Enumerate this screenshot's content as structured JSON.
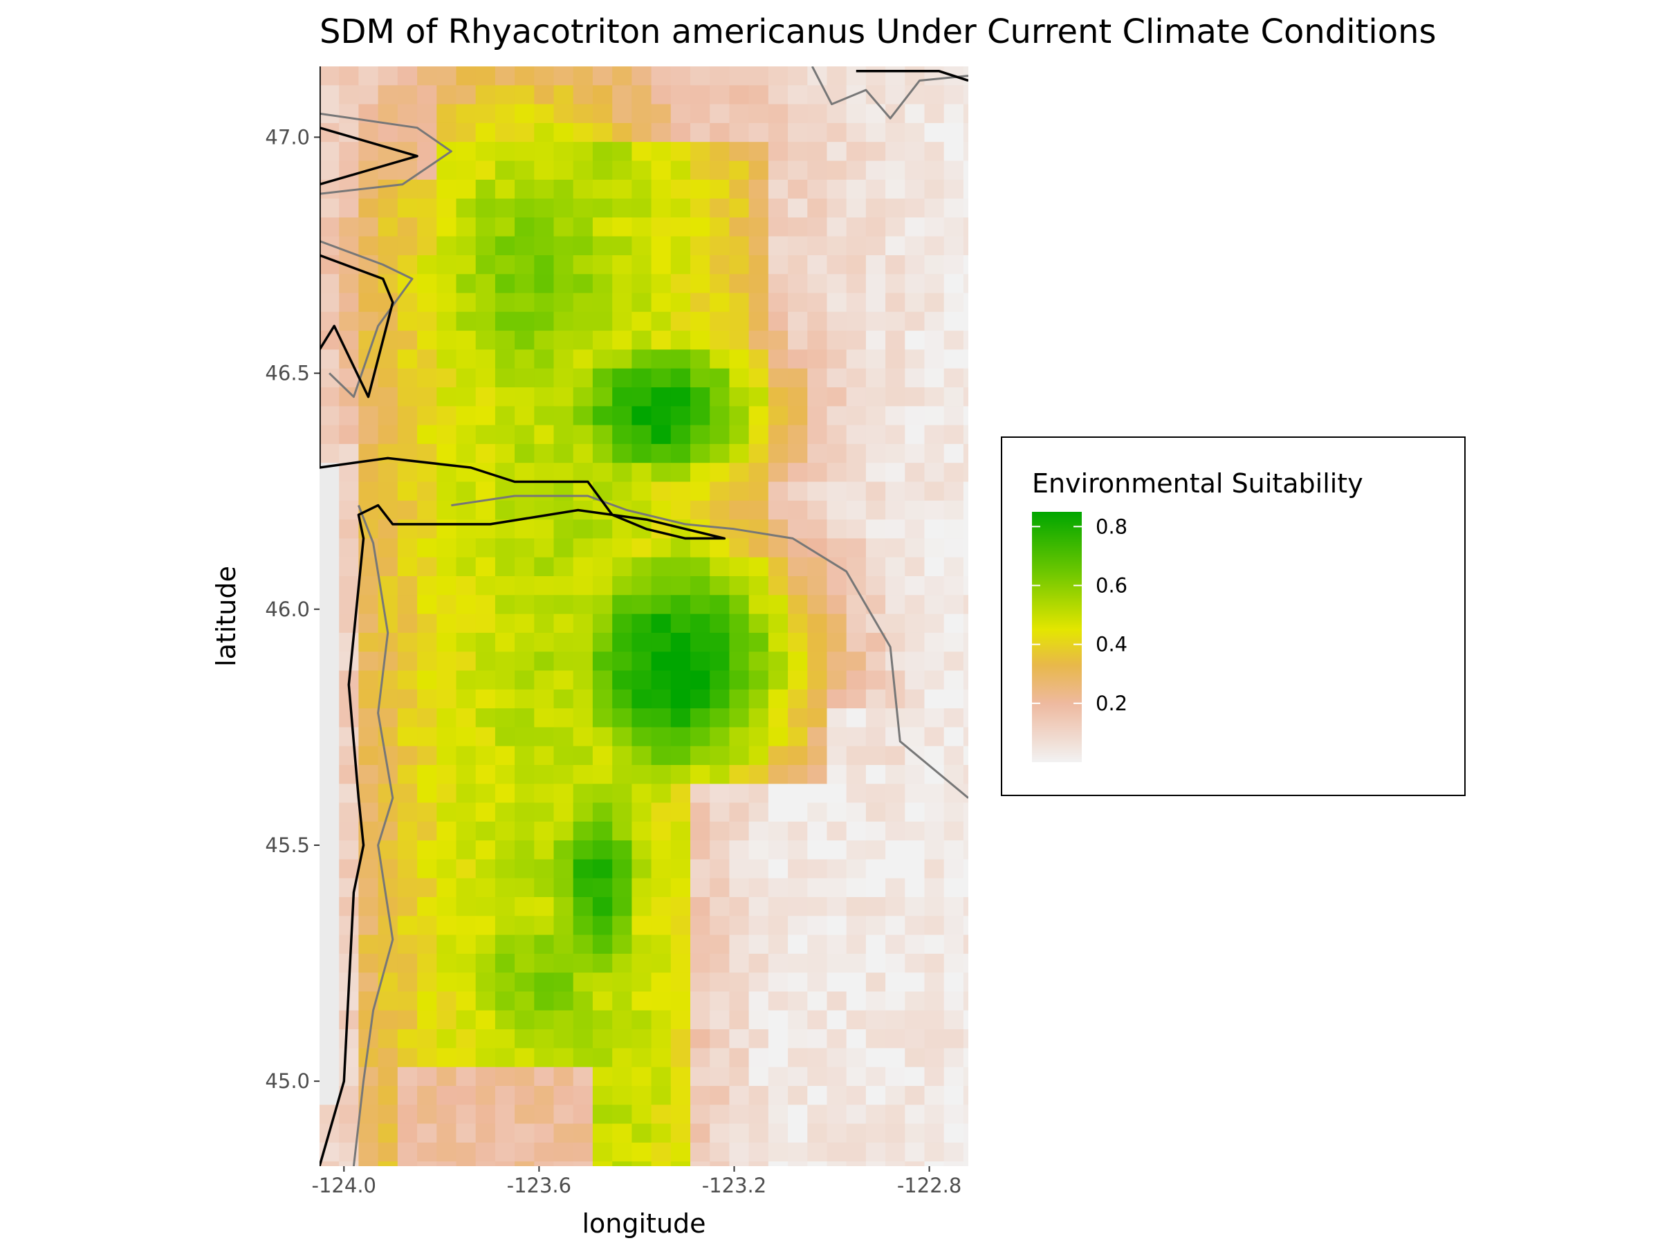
{
  "chart_data": {
    "type": "heatmap",
    "title": "SDM of Rhyacotriton americanus Under Current Climate Conditions",
    "xlabel": "longitude",
    "ylabel": "latitude",
    "xlim": [
      -124.05,
      -122.72
    ],
    "ylim": [
      44.82,
      47.15
    ],
    "x_ticks": [
      -124.0,
      -123.6,
      -123.2,
      -122.8
    ],
    "x_tick_labels": [
      "-124.0",
      "-123.6",
      "-123.2",
      "-122.8"
    ],
    "y_ticks": [
      45.0,
      45.5,
      46.0,
      46.5,
      47.0
    ],
    "y_tick_labels": [
      "45.0",
      "45.5",
      "46.0",
      "46.5",
      "47.0"
    ],
    "grid": false,
    "cell_size_deg": 0.04,
    "value_range": [
      0.0,
      0.85
    ],
    "colormap": [
      {
        "value": 0.0,
        "color": "#f2f2f2"
      },
      {
        "value": 0.2,
        "color": "#eeb99f"
      },
      {
        "value": 0.33,
        "color": "#e8b84a"
      },
      {
        "value": 0.45,
        "color": "#e4e600"
      },
      {
        "value": 0.65,
        "color": "#6ac600"
      },
      {
        "value": 0.85,
        "color": "#00a600"
      }
    ],
    "na_color": "#ebebeb",
    "legend": {
      "title": "Environmental Suitability",
      "ticks": [
        0.2,
        0.4,
        0.6,
        0.8
      ],
      "tick_labels": [
        "0.2",
        "0.4",
        "0.6",
        "0.8"
      ],
      "position": "right"
    },
    "suitability_model": {
      "peaks": [
        {
          "lon": -123.32,
          "lat": 45.88,
          "value": 0.86,
          "rx": 0.25,
          "ry": 0.28
        },
        {
          "lon": -123.35,
          "lat": 46.42,
          "value": 0.84,
          "rx": 0.22,
          "ry": 0.17
        },
        {
          "lon": -123.48,
          "lat": 45.42,
          "value": 0.78,
          "rx": 0.12,
          "ry": 0.25
        },
        {
          "lon": -123.62,
          "lat": 46.7,
          "value": 0.62,
          "rx": 0.3,
          "ry": 0.45
        },
        {
          "lon": -123.6,
          "lat": 45.2,
          "value": 0.62,
          "rx": 0.22,
          "ry": 0.3
        }
      ],
      "ridge": {
        "lon_center": -123.55,
        "lon_halfwidth": 0.42,
        "value": 0.52
      },
      "low_zones": [
        {
          "description": "SE lowlands",
          "lon_min": -123.28,
          "lat_max": 45.62,
          "value": 0.02
        },
        {
          "description": "NE valley",
          "lon_min": -123.05,
          "lat_min": 46.5,
          "value": 0.12
        },
        {
          "description": "SW coast",
          "lat_max": 45.0,
          "lon_max": -123.55,
          "value": 0.2
        }
      ]
    },
    "boundary_lines": [
      {
        "name": "coast-state-boundary",
        "color": "#000000",
        "points": [
          [
            -124.05,
            47.15
          ],
          [
            -124.05,
            46.3
          ],
          [
            -123.91,
            46.32
          ],
          [
            -123.74,
            46.3
          ],
          [
            -123.65,
            46.27
          ],
          [
            -123.5,
            46.27
          ],
          [
            -123.45,
            46.2
          ],
          [
            -123.38,
            46.17
          ],
          [
            -123.3,
            46.15
          ],
          [
            -123.22,
            46.15
          ],
          [
            -123.38,
            46.19
          ],
          [
            -123.52,
            46.21
          ],
          [
            -123.7,
            46.18
          ],
          [
            -123.9,
            46.18
          ],
          [
            -123.93,
            46.22
          ],
          [
            -123.97,
            46.2
          ],
          [
            -123.96,
            46.15
          ],
          [
            -123.99,
            45.84
          ],
          [
            -123.97,
            45.6
          ],
          [
            -123.96,
            45.5
          ],
          [
            -123.98,
            45.4
          ],
          [
            -124.0,
            45.0
          ],
          [
            -124.05,
            44.82
          ]
        ]
      },
      {
        "name": "willapa-bay-outline",
        "color": "#000000",
        "points": [
          [
            -124.05,
            46.75
          ],
          [
            -123.92,
            46.7
          ],
          [
            -123.9,
            46.65
          ],
          [
            -123.95,
            46.45
          ],
          [
            -124.02,
            46.6
          ],
          [
            -124.05,
            46.55
          ]
        ]
      },
      {
        "name": "grays-harbor-outline",
        "color": "#000000",
        "points": [
          [
            -124.05,
            46.9
          ],
          [
            -123.85,
            46.96
          ],
          [
            -124.05,
            47.02
          ]
        ]
      },
      {
        "name": "puget-outline",
        "color": "#000000",
        "points": [
          [
            -122.95,
            47.14
          ],
          [
            -122.78,
            47.14
          ],
          [
            -122.72,
            47.12
          ]
        ]
      }
    ],
    "contour_lines": [
      {
        "name": "elevation-contour",
        "color": "#777777",
        "points": [
          [
            -123.97,
            46.22
          ],
          [
            -123.94,
            46.14
          ],
          [
            -123.91,
            45.95
          ],
          [
            -123.93,
            45.78
          ],
          [
            -123.9,
            45.6
          ],
          [
            -123.93,
            45.5
          ],
          [
            -123.9,
            45.3
          ],
          [
            -123.94,
            45.15
          ],
          [
            -123.96,
            45.0
          ],
          [
            -123.98,
            44.82
          ]
        ]
      },
      {
        "name": "columbia-river-contour",
        "color": "#777777",
        "points": [
          [
            -123.78,
            46.22
          ],
          [
            -123.65,
            46.24
          ],
          [
            -123.5,
            46.24
          ],
          [
            -123.42,
            46.21
          ],
          [
            -123.3,
            46.18
          ],
          [
            -123.2,
            46.17
          ],
          [
            -123.08,
            46.15
          ],
          [
            -122.97,
            46.08
          ],
          [
            -122.88,
            45.92
          ],
          [
            -122.86,
            45.72
          ],
          [
            -122.72,
            45.6
          ]
        ]
      },
      {
        "name": "willapa-contour",
        "color": "#777777",
        "points": [
          [
            -124.05,
            46.78
          ],
          [
            -123.92,
            46.73
          ],
          [
            -123.86,
            46.7
          ],
          [
            -123.93,
            46.6
          ],
          [
            -123.98,
            46.45
          ],
          [
            -124.03,
            46.5
          ]
        ]
      },
      {
        "name": "grays-contour",
        "color": "#777777",
        "points": [
          [
            -124.05,
            47.05
          ],
          [
            -123.85,
            47.02
          ],
          [
            -123.78,
            46.97
          ],
          [
            -123.88,
            46.9
          ],
          [
            -124.05,
            46.88
          ]
        ]
      },
      {
        "name": "puget-contour",
        "color": "#777777",
        "points": [
          [
            -123.04,
            47.15
          ],
          [
            -123.0,
            47.07
          ],
          [
            -122.93,
            47.1
          ],
          [
            -122.88,
            47.04
          ],
          [
            -122.82,
            47.12
          ],
          [
            -122.72,
            47.13
          ]
        ]
      }
    ]
  }
}
